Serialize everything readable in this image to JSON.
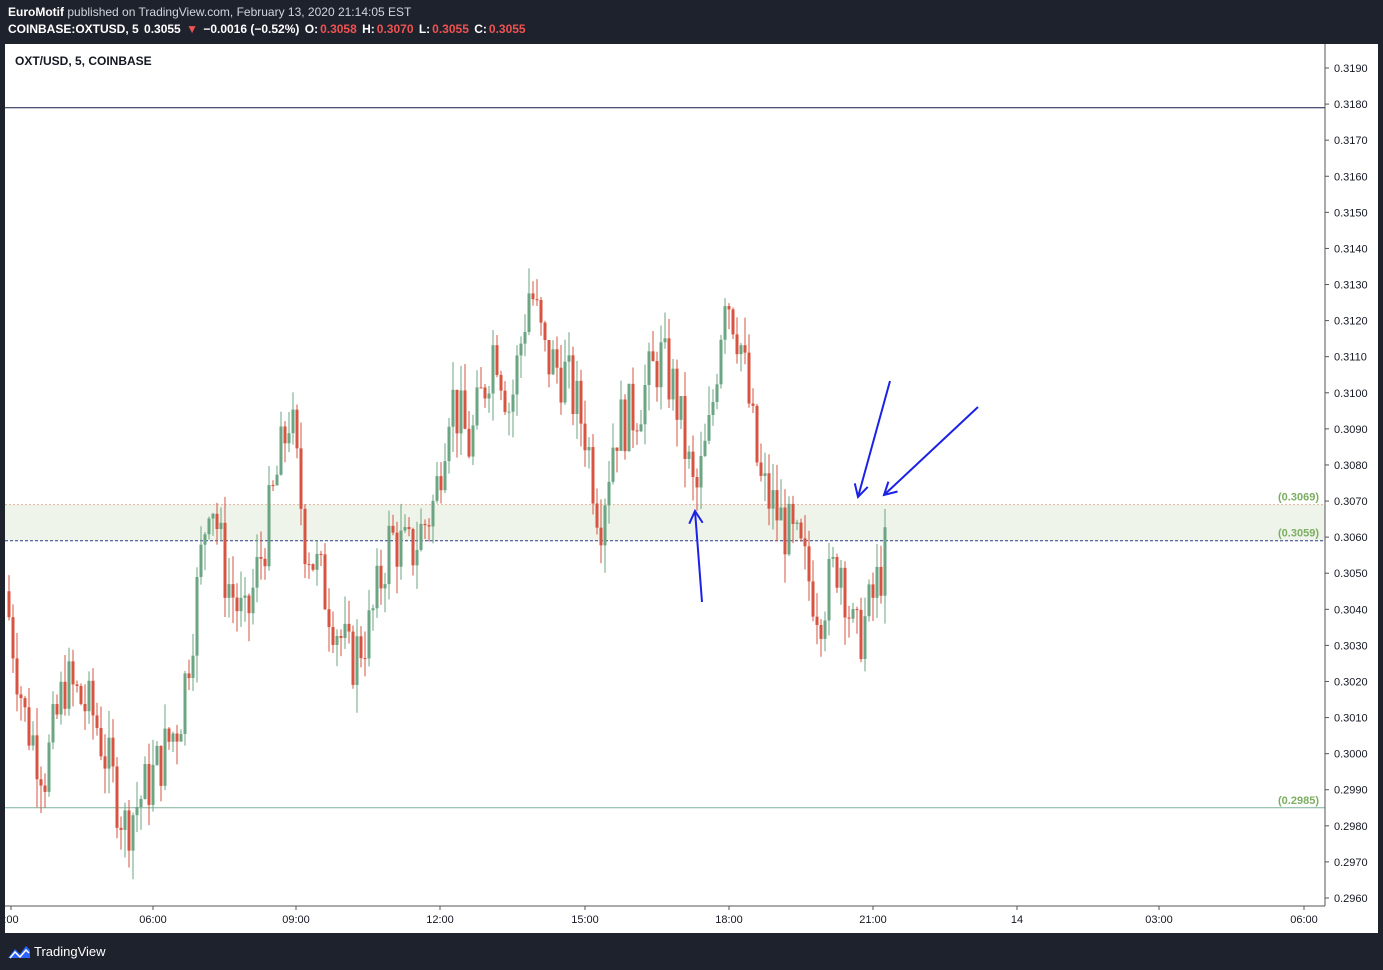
{
  "header": {
    "author": "EuroMotif",
    "published": "published on TradingView.com, February 13, 2020 21:14:05 EST",
    "symbol": "COINBASE:OXTUSD, 5",
    "last": "0.3055",
    "change": "−0.0016 (−0.52%)",
    "ohlc": {
      "o_label": "O:",
      "o": "0.3058",
      "h_label": "H:",
      "h": "0.3070",
      "l_label": "L:",
      "l": "0.3055",
      "c_label": "C:",
      "c": "0.3055"
    },
    "down_arrow_icon": "triangle-down"
  },
  "legend": "OXT/USD, 5, COINBASE",
  "footer": {
    "brand": "TradingView"
  },
  "colors": {
    "up": "#6ba583",
    "down": "#d75442",
    "zone": "#eef4ea",
    "level_label": "#7cae63",
    "arrow": "#1b22e6",
    "hline": "#131a4a"
  },
  "chart_data": {
    "type": "candlestick",
    "yticks": [
      "0.3190",
      "0.3180",
      "0.3170",
      "0.3160",
      "0.3150",
      "0.3140",
      "0.3130",
      "0.3120",
      "0.3110",
      "0.3100",
      "0.3090",
      "0.3080",
      "0.3070",
      "0.3060",
      "0.3050",
      "0.3040",
      "0.3030",
      "0.3020",
      "0.3010",
      "0.3000",
      "0.2990",
      "0.2980",
      "0.2970",
      "0.2960"
    ],
    "xticks": [
      ":00",
      "06:00",
      "09:00",
      "12:00",
      "15:00",
      "18:00",
      "21:00",
      "14",
      "03:00",
      "06:00"
    ],
    "levels": [
      {
        "value": 0.3179,
        "label": ""
      },
      {
        "value": 0.3069,
        "label": "(0.3069)"
      },
      {
        "value": 0.3059,
        "label": "(0.3059)"
      },
      {
        "value": 0.2985,
        "label": "(0.2985)"
      }
    ],
    "zone": [
      0.3059,
      0.3069
    ],
    "ohlc": []
  }
}
